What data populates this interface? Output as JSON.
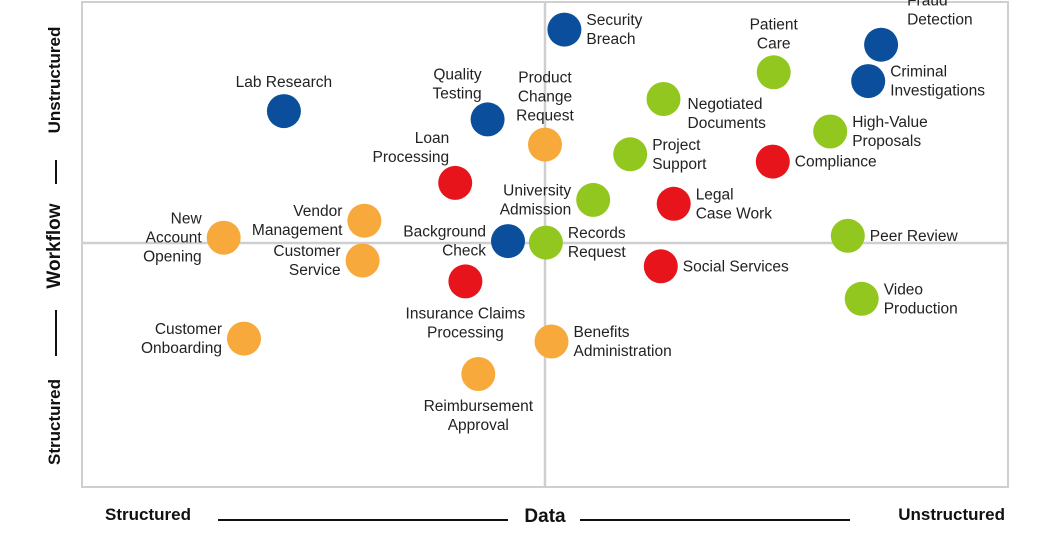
{
  "chart_data": {
    "type": "scatter",
    "xlabel": "Data",
    "ylabel": "Workflow",
    "x_ends": {
      "low": "Structured",
      "high": "Unstructured"
    },
    "y_ends": {
      "low": "Structured",
      "high": "Unstructured"
    },
    "xlim": [
      0,
      100
    ],
    "ylim": [
      0,
      100
    ],
    "grid": "quadrant-dividers",
    "colors": {
      "blue": "#0b4f9c",
      "green": "#92c720",
      "red": "#e8141b",
      "orange": "#f7a93b",
      "frame": "#cfcfcf",
      "divider": "#cfcfcf",
      "text": "#222222"
    },
    "points": [
      {
        "label": [
          "Security",
          "Breach"
        ],
        "x": 52.1,
        "y": 94.3,
        "color": "blue",
        "label_pos": "right"
      },
      {
        "label": [
          "Fraud",
          "Detection"
        ],
        "x": 86.3,
        "y": 91.2,
        "color": "blue",
        "label_pos": "above-right"
      },
      {
        "label": [
          "Criminal",
          "Investigations"
        ],
        "x": 84.9,
        "y": 83.7,
        "color": "blue",
        "label_pos": "right"
      },
      {
        "label": [
          "Lab Research"
        ],
        "x": 21.8,
        "y": 77.5,
        "color": "blue",
        "label_pos": "above"
      },
      {
        "label": [
          "Quality",
          "Testing"
        ],
        "x": 43.8,
        "y": 75.8,
        "color": "blue",
        "label_pos": "above-left"
      },
      {
        "label": [
          "Background",
          "Check"
        ],
        "x": 46.0,
        "y": 50.7,
        "color": "blue",
        "label_pos": "left"
      },
      {
        "label": [
          "Patient",
          "Care"
        ],
        "x": 74.7,
        "y": 85.5,
        "color": "green",
        "label_pos": "above"
      },
      {
        "label": [
          "Negotiated",
          "Documents"
        ],
        "x": 62.8,
        "y": 80.0,
        "color": "green",
        "label_pos": "below-right"
      },
      {
        "label": [
          "High-Value",
          "Proposals"
        ],
        "x": 80.8,
        "y": 73.3,
        "color": "green",
        "label_pos": "right"
      },
      {
        "label": [
          "Project",
          "Support"
        ],
        "x": 59.2,
        "y": 68.6,
        "color": "green",
        "label_pos": "right"
      },
      {
        "label": [
          "University",
          "Admission"
        ],
        "x": 55.2,
        "y": 59.2,
        "color": "green",
        "label_pos": "left"
      },
      {
        "label": [
          "Records",
          "Request"
        ],
        "x": 50.1,
        "y": 50.4,
        "color": "green",
        "label_pos": "right"
      },
      {
        "label": [
          "Peer Review"
        ],
        "x": 82.7,
        "y": 51.8,
        "color": "green",
        "label_pos": "right"
      },
      {
        "label": [
          "Video",
          "Production"
        ],
        "x": 84.2,
        "y": 38.8,
        "color": "green",
        "label_pos": "right"
      },
      {
        "label": [
          "Loan",
          "Processing"
        ],
        "x": 40.3,
        "y": 62.7,
        "color": "red",
        "label_pos": "above-left"
      },
      {
        "label": [
          "Compliance"
        ],
        "x": 74.6,
        "y": 67.1,
        "color": "red",
        "label_pos": "right"
      },
      {
        "label": [
          "Legal",
          "Case Work"
        ],
        "x": 63.9,
        "y": 58.4,
        "color": "red",
        "label_pos": "right"
      },
      {
        "label": [
          "Social Services"
        ],
        "x": 62.5,
        "y": 45.5,
        "color": "red",
        "label_pos": "right"
      },
      {
        "label": [
          "Insurance Claims",
          "Processing"
        ],
        "x": 41.4,
        "y": 42.4,
        "color": "red",
        "label_pos": "below"
      },
      {
        "label": [
          "Product",
          "Change",
          "Request"
        ],
        "x": 50.0,
        "y": 70.6,
        "color": "orange",
        "label_pos": "above"
      },
      {
        "label": [
          "Vendor",
          "Management"
        ],
        "x": 30.5,
        "y": 54.9,
        "color": "orange",
        "label_pos": "left"
      },
      {
        "label": [
          "New",
          "Account",
          "Opening"
        ],
        "x": 15.3,
        "y": 51.4,
        "color": "orange",
        "label_pos": "left"
      },
      {
        "label": [
          "Customer",
          "Service"
        ],
        "x": 30.3,
        "y": 46.7,
        "color": "orange",
        "label_pos": "left"
      },
      {
        "label": [
          "Customer",
          "Onboarding"
        ],
        "x": 17.5,
        "y": 30.6,
        "color": "orange",
        "label_pos": "left"
      },
      {
        "label": [
          "Benefits",
          "Administration"
        ],
        "x": 50.7,
        "y": 30.0,
        "color": "orange",
        "label_pos": "right"
      },
      {
        "label": [
          "Reimbursement",
          "Approval"
        ],
        "x": 42.8,
        "y": 23.3,
        "color": "orange",
        "label_pos": "below"
      }
    ]
  }
}
